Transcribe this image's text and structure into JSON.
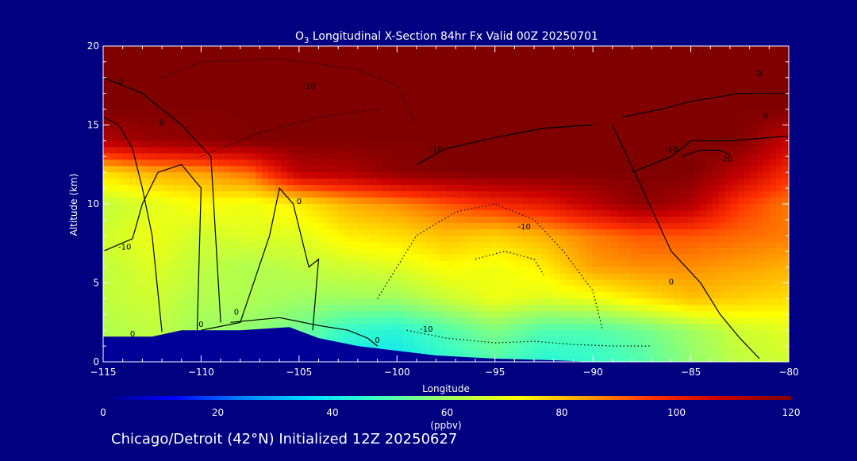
{
  "background": "#000080",
  "terrain_color": "#000099",
  "footer": "Chicago/Detroit (42°N) Initialized 12Z 20250627",
  "chart_data": {
    "type": "heatmap",
    "title_prefix": "O",
    "title_sub": "3",
    "title_suffix": " Longitudinal X-Section 84hr  Fx Valid 00Z 20250701",
    "xlabel": "Longitude",
    "ylabel": "Altitude (km)",
    "xlim": [
      -115,
      -80
    ],
    "ylim": [
      0,
      20
    ],
    "xticks": [
      -115,
      -110,
      -105,
      -100,
      -95,
      -90,
      -85,
      -80
    ],
    "xtick_labels": [
      "−115",
      "−110",
      "−105",
      "−100",
      "−95",
      "−90",
      "−85",
      "−80"
    ],
    "yticks": [
      0,
      5,
      10,
      15,
      20
    ],
    "ytick_labels": [
      "0",
      "5",
      "10",
      "15",
      "20"
    ],
    "colorbar": {
      "label": "(ppbv)",
      "min": 0,
      "max": 120,
      "ticks": [
        0,
        20,
        40,
        60,
        80,
        100,
        120
      ],
      "tick_labels": [
        "0",
        "20",
        "40",
        "60",
        "80",
        "100",
        "120"
      ],
      "stops": [
        "#000080",
        "#0000ff",
        "#0080ff",
        "#00e0ff",
        "#40ffc0",
        "#a0ff60",
        "#ffff00",
        "#ffa000",
        "#ff3000",
        "#c80000",
        "#800000"
      ]
    },
    "o3_field": {
      "lons": [
        -115,
        -112.5,
        -110,
        -107.5,
        -105,
        -102.5,
        -100,
        -97.5,
        -95,
        -92.5,
        -90,
        -87.5,
        -85,
        -82.5,
        -80
      ],
      "alts": [
        0,
        2,
        4,
        6,
        8,
        10,
        12,
        14,
        16,
        18,
        20
      ],
      "values": [
        [
          62,
          64,
          58,
          56,
          50,
          40,
          38,
          45,
          50,
          44,
          46,
          50,
          58,
          64,
          66
        ],
        [
          62,
          64,
          60,
          58,
          54,
          46,
          44,
          50,
          56,
          50,
          50,
          54,
          60,
          66,
          68
        ],
        [
          64,
          66,
          62,
          62,
          60,
          60,
          60,
          65,
          70,
          68,
          70,
          75,
          80,
          78,
          76
        ],
        [
          64,
          68,
          64,
          62,
          64,
          66,
          68,
          72,
          70,
          74,
          84,
          86,
          86,
          84,
          82
        ],
        [
          66,
          70,
          66,
          68,
          68,
          74,
          76,
          80,
          78,
          82,
          88,
          92,
          92,
          90,
          88
        ],
        [
          64,
          68,
          72,
          70,
          74,
          82,
          86,
          92,
          98,
          102,
          110,
          118,
          112,
          96,
          88
        ],
        [
          76,
          82,
          84,
          90,
          110,
          112,
          118,
          120,
          120,
          120,
          120,
          120,
          120,
          110,
          98
        ],
        [
          112,
          116,
          118,
          120,
          120,
          120,
          120,
          120,
          120,
          120,
          120,
          120,
          120,
          120,
          108
        ],
        [
          120,
          120,
          120,
          120,
          120,
          120,
          120,
          120,
          120,
          120,
          120,
          120,
          120,
          120,
          120
        ],
        [
          120,
          120,
          120,
          120,
          120,
          120,
          120,
          120,
          120,
          120,
          120,
          120,
          120,
          120,
          120
        ],
        [
          120,
          120,
          120,
          120,
          120,
          120,
          120,
          120,
          120,
          120,
          120,
          120,
          120,
          120,
          120
        ]
      ]
    },
    "terrain": {
      "lon": [
        -115,
        -112.5,
        -111,
        -110,
        -108,
        -105.5,
        -104,
        -102,
        -100,
        -98,
        -95,
        -92,
        -90,
        -88,
        -86,
        -84,
        -82.5,
        -81.5,
        -80
      ],
      "alt": [
        1.6,
        1.6,
        2.0,
        2.0,
        2.0,
        2.2,
        1.5,
        1.0,
        0.7,
        0.4,
        0.2,
        0.1,
        0.0,
        0.0,
        0.0,
        0.0,
        0.0,
        0.0,
        0.0
      ]
    },
    "contours": [
      {
        "style": "solid",
        "lon": [
          -115,
          -114.2,
          -113.5,
          -113,
          -112.5,
          -112
        ],
        "alt": [
          15.5,
          15.0,
          13.5,
          11.0,
          8.0,
          1.9
        ]
      },
      {
        "style": "solid",
        "lon": [
          -115,
          -113.5,
          -113,
          -112.2,
          -111,
          -110,
          -110.2
        ],
        "alt": [
          7.0,
          7.8,
          10.0,
          12.0,
          12.5,
          11.0,
          2.0
        ]
      },
      {
        "style": "solid",
        "lon": [
          -110,
          -108,
          -106.5,
          -106,
          -105.3,
          -104.5,
          -104,
          -104.3
        ],
        "alt": [
          2.0,
          2.5,
          8.0,
          11.0,
          10.0,
          6.0,
          6.5,
          2.0
        ]
      },
      {
        "style": "solid",
        "lon": [
          -115,
          -113,
          -111,
          -109.5,
          -109
        ],
        "alt": [
          18.0,
          17.0,
          15.0,
          13.0,
          2.5
        ]
      },
      {
        "style": "solid",
        "lon": [
          -108.5,
          -106,
          -104,
          -102.5,
          -101.5,
          -101
        ],
        "alt": [
          2.5,
          2.8,
          2.3,
          2.0,
          1.5,
          1.0
        ]
      },
      {
        "style": "solid",
        "lon": [
          -99,
          -97.5,
          -95,
          -92.5,
          -90
        ],
        "alt": [
          12.5,
          13.5,
          14.2,
          14.8,
          15.0
        ]
      },
      {
        "style": "solid",
        "lon": [
          -88.5,
          -86.5,
          -85,
          -84,
          -82.5,
          -80
        ],
        "alt": [
          15.5,
          16.0,
          16.5,
          16.7,
          17.0,
          17.0
        ]
      },
      {
        "style": "solid",
        "lon": [
          -88,
          -86,
          -85,
          -84,
          -83,
          -81,
          -80
        ],
        "alt": [
          12.0,
          13.0,
          14.0,
          14.0,
          14.0,
          14.2,
          14.3
        ]
      },
      {
        "style": "solid",
        "lon": [
          -85.5,
          -84.5,
          -83.5,
          -83
        ],
        "alt": [
          13.0,
          13.4,
          13.4,
          13.1
        ]
      },
      {
        "style": "solid",
        "lon": [
          -89,
          -87.5,
          -86,
          -84.5,
          -83.5,
          -82.5,
          -81.5
        ],
        "alt": [
          15.0,
          11.0,
          7.0,
          5.0,
          3.0,
          1.5,
          0.2
        ]
      },
      {
        "style": "dotted",
        "lon": [
          -112,
          -110,
          -106,
          -102,
          -100,
          -99
        ],
        "alt": [
          18.0,
          19.0,
          19.2,
          18.5,
          17.5,
          15.0
        ]
      },
      {
        "style": "dotted",
        "lon": [
          -110,
          -107,
          -104,
          -101
        ],
        "alt": [
          13.0,
          14.5,
          15.5,
          16.0
        ]
      },
      {
        "style": "dotted",
        "lon": [
          -101,
          -99,
          -97,
          -95,
          -93,
          -91.5,
          -90,
          -89.5
        ],
        "alt": [
          4.0,
          8.0,
          9.5,
          10.0,
          9.0,
          7.0,
          4.5,
          2.0
        ]
      },
      {
        "style": "dotted",
        "lon": [
          -99.5,
          -97.5,
          -95,
          -93,
          -91,
          -89,
          -87
        ],
        "alt": [
          2.0,
          1.5,
          1.2,
          1.3,
          1.1,
          1.0,
          1.0
        ]
      },
      {
        "style": "dotted",
        "lon": [
          -96,
          -94.5,
          -93,
          -92.5
        ],
        "alt": [
          6.5,
          7.0,
          6.5,
          5.5
        ]
      }
    ],
    "contour_labels": [
      {
        "text": "0",
        "lon": -114.1,
        "alt": 17.8
      },
      {
        "text": "-10",
        "lon": -104.5,
        "alt": 17.5
      },
      {
        "text": "0",
        "lon": -112,
        "alt": 15.2
      },
      {
        "text": "-10",
        "lon": -113.9,
        "alt": 7.3
      },
      {
        "text": "0",
        "lon": -105,
        "alt": 10.2
      },
      {
        "text": "0",
        "lon": -108.2,
        "alt": 3.2
      },
      {
        "text": "0",
        "lon": -110,
        "alt": 2.4
      },
      {
        "text": "0",
        "lon": -113.5,
        "alt": 1.8
      },
      {
        "text": "0",
        "lon": -101,
        "alt": 1.4
      },
      {
        "text": "-10",
        "lon": -98,
        "alt": 13.5
      },
      {
        "text": "-10",
        "lon": -93.5,
        "alt": 8.6
      },
      {
        "text": "-10",
        "lon": -98.5,
        "alt": 2.1
      },
      {
        "text": "0",
        "lon": -81.5,
        "alt": 18.3
      },
      {
        "text": "0",
        "lon": -81.2,
        "alt": 15.6
      },
      {
        "text": "-10",
        "lon": -86,
        "alt": 13.5
      },
      {
        "text": "-20",
        "lon": -83.2,
        "alt": 12.9
      },
      {
        "text": "0",
        "lon": -86,
        "alt": 5.1
      }
    ]
  }
}
